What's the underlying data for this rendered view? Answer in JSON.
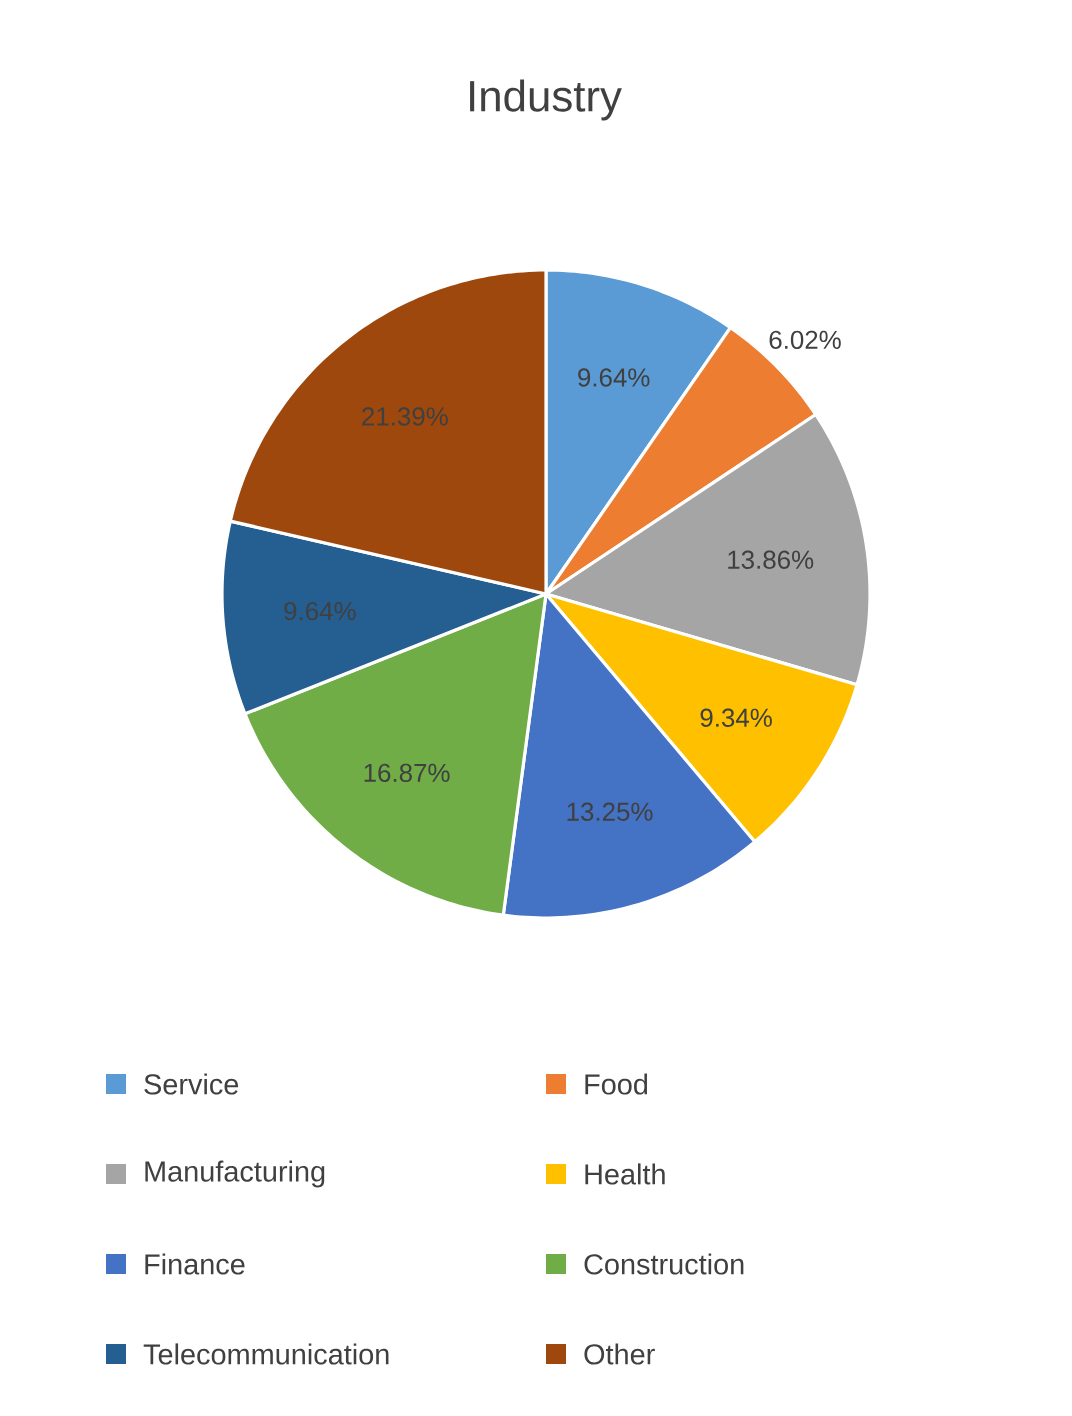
{
  "chart_data": {
    "type": "pie",
    "title": "Industry",
    "categories": [
      "Service",
      "Food",
      "Manufacturing",
      "Health",
      "Finance",
      "Construction",
      "Telecommunication",
      "Other"
    ],
    "values": [
      9.64,
      6.02,
      13.86,
      9.34,
      13.25,
      16.87,
      9.64,
      21.39
    ],
    "value_labels": [
      "9.64%",
      "6.02%",
      "13.86%",
      "9.34%",
      "13.25%",
      "16.87%",
      "9.64%",
      "21.39%"
    ],
    "colors": [
      "#5b9bd5",
      "#ed7d31",
      "#a5a5a5",
      "#ffc000",
      "#4472c4",
      "#70ad47",
      "#255e91",
      "#9e480e"
    ],
    "legend": "bottom"
  }
}
